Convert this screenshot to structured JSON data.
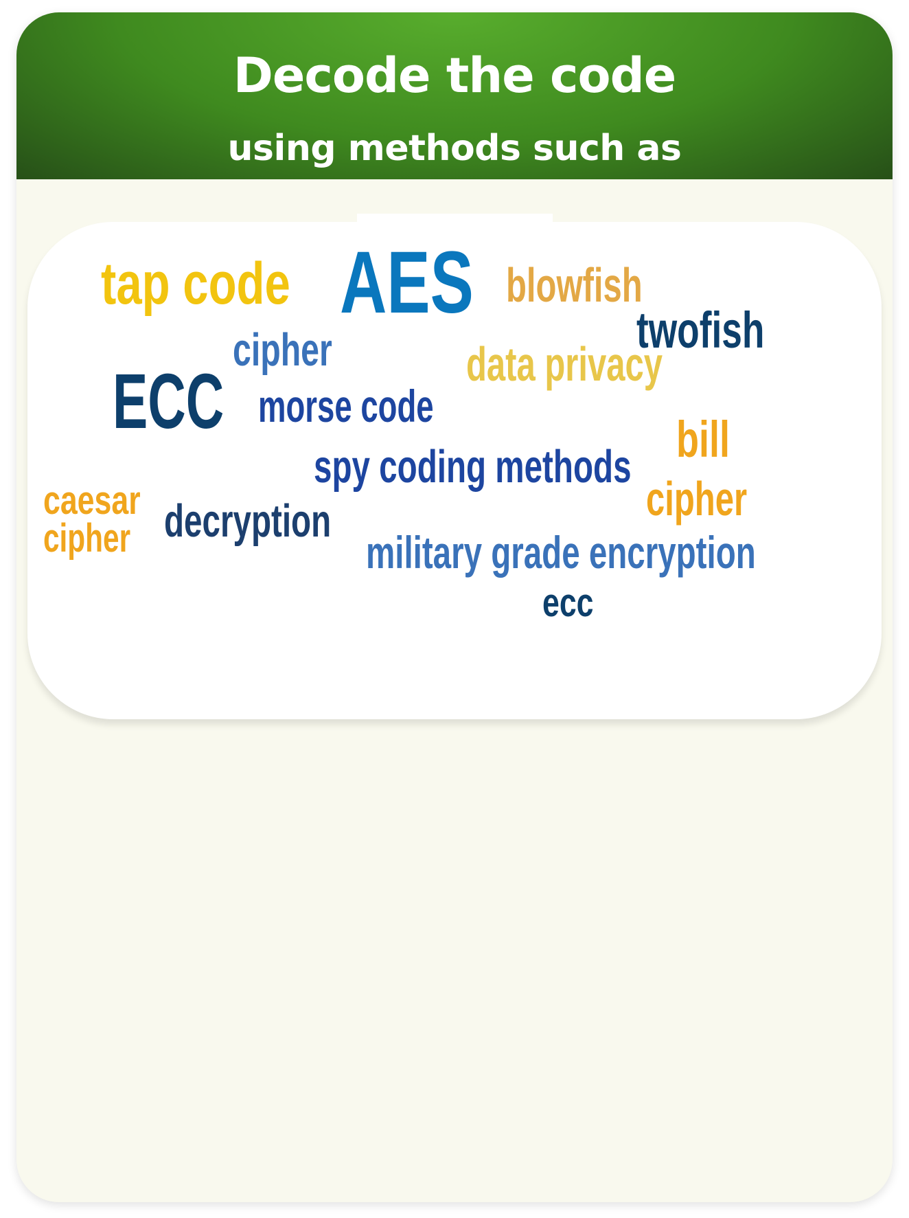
{
  "header": {
    "title": "Decode the code",
    "subtitle": "using methods such as"
  },
  "colors": {
    "header_green": "#4a9d26",
    "card_bg": "#f9f9ee",
    "panel_bg": "#ffffff"
  },
  "word_cloud": {
    "words": [
      {
        "text": "tap code",
        "color": "#f2c40f"
      },
      {
        "text": "AES",
        "color": "#0a77bd"
      },
      {
        "text": "blowfish",
        "color": "#e3a845"
      },
      {
        "text": "twofish",
        "color": "#0d3f6b"
      },
      {
        "text": "cipher",
        "color": "#3a72b9"
      },
      {
        "text": "data privacy",
        "color": "#e8c64a"
      },
      {
        "text": "ECC",
        "color": "#0d3f6b"
      },
      {
        "text": "morse code",
        "color": "#1d45a0"
      },
      {
        "text": "bill",
        "color": "#f0a51d"
      },
      {
        "text": "spy coding methods",
        "color": "#1d45a0"
      },
      {
        "text": "caesar",
        "color": "#f0a51d"
      },
      {
        "text": "cipher",
        "color": "#f0a51d"
      },
      {
        "text": "decryption",
        "color": "#1c3f6e"
      },
      {
        "text": "cipher",
        "color": "#f0a51d"
      },
      {
        "text": "military grade encryption",
        "color": "#3a72b9"
      },
      {
        "text": "ecc",
        "color": "#0d3f6b"
      }
    ]
  }
}
